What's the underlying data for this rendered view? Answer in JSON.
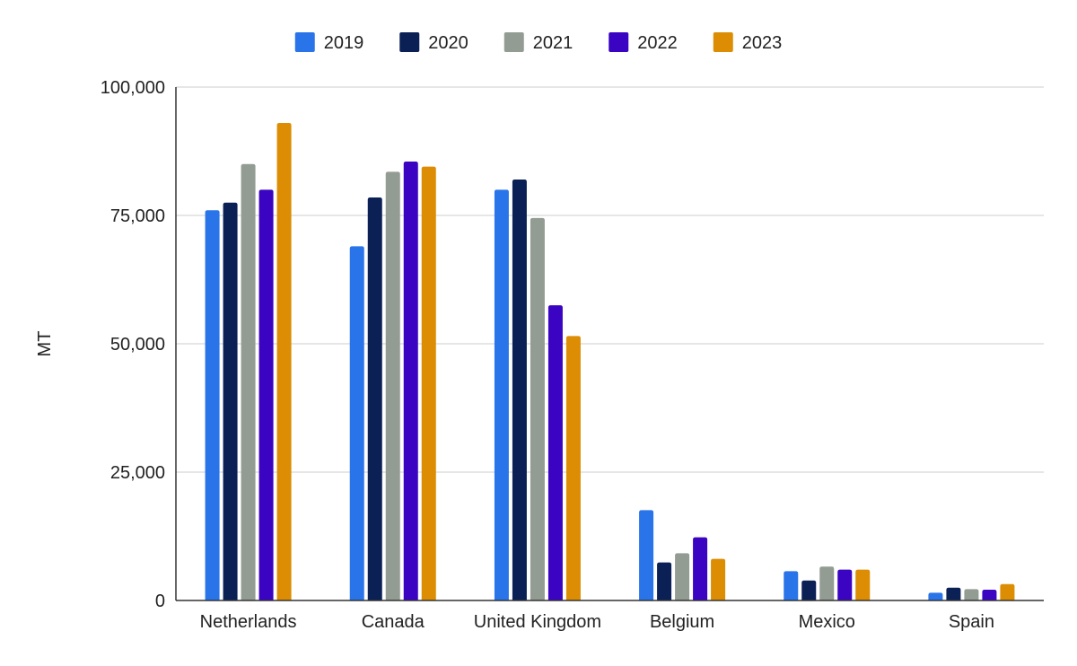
{
  "chart_data": {
    "type": "bar",
    "title": "",
    "xlabel": "",
    "ylabel": "MT",
    "ylim": [
      0,
      100000
    ],
    "yticks": [
      0,
      25000,
      50000,
      75000,
      100000
    ],
    "ytick_labels": [
      "0",
      "25,000",
      "50,000",
      "75,000",
      "100,000"
    ],
    "grid": true,
    "legend_position": "top",
    "categories": [
      "Netherlands",
      "Canada",
      "United Kingdom",
      "Belgium",
      "Mexico",
      "Spain"
    ],
    "series": [
      {
        "name": "2019",
        "color": "#2a74ea",
        "values": [
          76000,
          69000,
          80000,
          17600,
          5700,
          1500
        ]
      },
      {
        "name": "2020",
        "color": "#0b2155",
        "values": [
          77500,
          78500,
          82000,
          7400,
          3900,
          2500
        ]
      },
      {
        "name": "2021",
        "color": "#939c93",
        "values": [
          85000,
          83500,
          74500,
          9200,
          6600,
          2200
        ]
      },
      {
        "name": "2022",
        "color": "#3a04c2",
        "values": [
          80000,
          85500,
          57500,
          12300,
          6000,
          2100
        ]
      },
      {
        "name": "2023",
        "color": "#dc8d04",
        "values": [
          93000,
          84500,
          51500,
          8100,
          6000,
          3200
        ]
      }
    ]
  }
}
